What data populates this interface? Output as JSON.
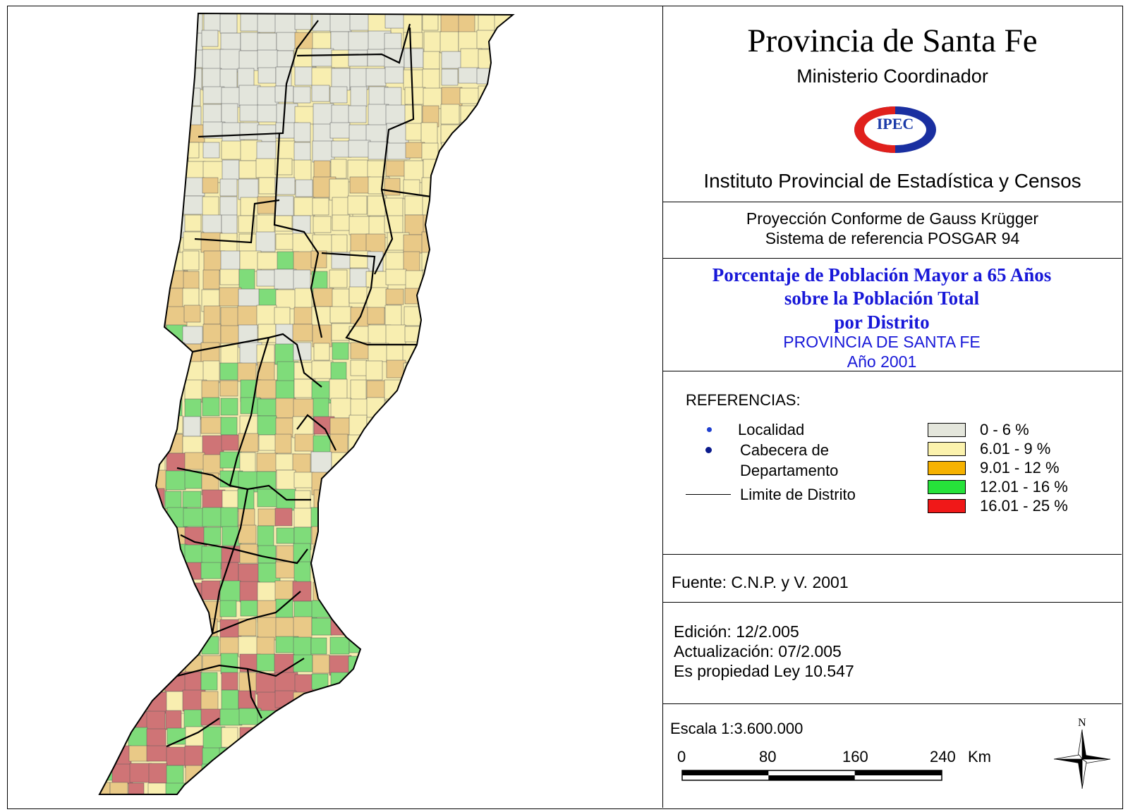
{
  "header": {
    "title": "Provincia de Santa Fe",
    "ministry": "Ministerio Coordinador",
    "logo_text": "IPEC",
    "institute": "Instituto Provincial de Estadística y Censos"
  },
  "projection": {
    "line1": "Proyección Conforme de Gauss Krügger",
    "line2": "Sistema de referencia POSGAR 94"
  },
  "subject": {
    "line1": "Porcentaje de Población Mayor a 65 Años",
    "line2": "sobre la Población Total",
    "line3": "por Distrito",
    "line4": "PROVINCIA DE SANTA FE",
    "line5": "Año 2001"
  },
  "legend": {
    "title": "REFERENCIAS:",
    "locality": "Localidad",
    "capital_line1": "Cabecera de",
    "capital_line2": "Departamento",
    "boundary": "Limite de Distrito",
    "colors": {
      "locality": "#1f3fd0",
      "capital": "#0a1a8c"
    },
    "classes": [
      {
        "label": "0 - 6 %",
        "color": "#e4e6dc"
      },
      {
        "label": "6.01 - 9 %",
        "color": "#fbf2ad"
      },
      {
        "label": "9.01 - 12 %",
        "color": "#f6b200"
      },
      {
        "label": "12.01 - 16 %",
        "color": "#26e23a"
      },
      {
        "label": "16.01 - 25 %",
        "color": "#f01818"
      }
    ]
  },
  "map_colors": {
    "c0": "#e3e5dc",
    "c1": "#f8eeb0",
    "c2": "#e9c987",
    "c3": "#7fdc7a",
    "c4": "#cf7476"
  },
  "source": "Fuente:  C.N.P. y V. 2001",
  "edition": {
    "line1": "Edición:  12/2.005",
    "line2": "Actualización:  07/2.005",
    "line3": "Es propiedad Ley 10.547"
  },
  "scale": {
    "title": "Escala 1:3.600.000",
    "ticks": [
      "0",
      "80",
      "160",
      "240"
    ],
    "unit": "Km"
  },
  "north_label": "N"
}
